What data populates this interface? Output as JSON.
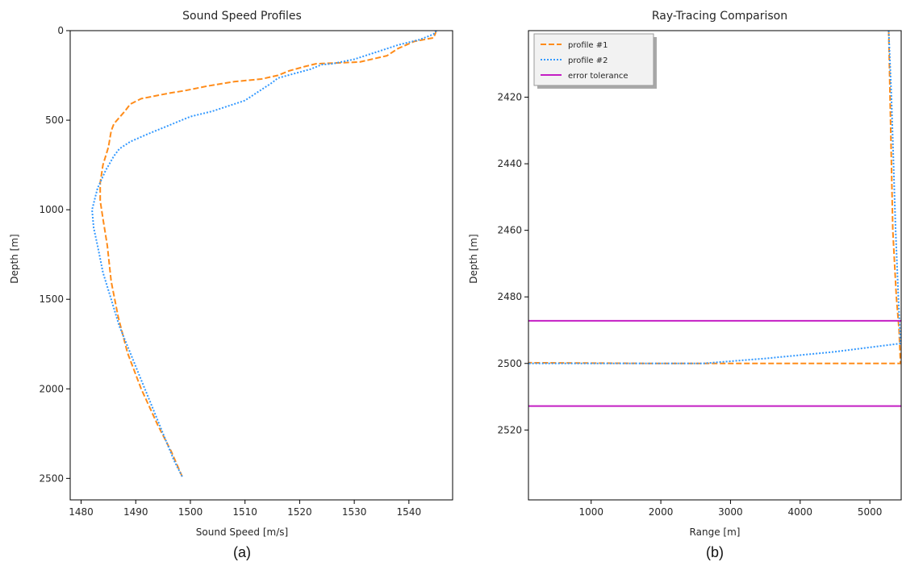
{
  "chart_data": [
    {
      "type": "line",
      "title": "Sound Speed Profiles",
      "xlabel": "Sound Speed [m/s]",
      "ylabel": "Depth [m]",
      "caption": "(a)",
      "xlim": [
        1478,
        1548
      ],
      "ylim": [
        2620,
        0
      ],
      "xticks": [
        1480,
        1490,
        1500,
        1510,
        1520,
        1530,
        1540
      ],
      "yticks": [
        0,
        500,
        1000,
        1500,
        2000,
        2500
      ],
      "grid": false,
      "colors": {
        "profile_1": "#ff8c1a",
        "profile_2": "#3399ff"
      },
      "series": [
        {
          "style": "dashed",
          "points": [
            [
              1545,
              0
            ],
            [
              1544.8,
              20
            ],
            [
              1544.5,
              40
            ],
            [
              1541,
              60
            ],
            [
              1538,
              100
            ],
            [
              1536,
              140
            ],
            [
              1531,
              175
            ],
            [
              1527,
              180
            ],
            [
              1523,
              185
            ],
            [
              1521,
              200
            ],
            [
              1518,
              225
            ],
            [
              1516,
              250
            ],
            [
              1513,
              270
            ],
            [
              1508,
              285
            ],
            [
              1505,
              300
            ],
            [
              1503,
              310
            ],
            [
              1499,
              335
            ],
            [
              1496,
              350
            ],
            [
              1491,
              380
            ],
            [
              1489,
              410
            ],
            [
              1488,
              450
            ],
            [
              1486,
              520
            ],
            [
              1485.5,
              560
            ],
            [
              1485,
              650
            ],
            [
              1484,
              750
            ],
            [
              1483.5,
              850
            ],
            [
              1483.5,
              950
            ],
            [
              1484,
              1050
            ],
            [
              1484.8,
              1200
            ],
            [
              1485.5,
              1400
            ],
            [
              1486.8,
              1600
            ],
            [
              1488.5,
              1800
            ],
            [
              1491,
              2000
            ],
            [
              1494,
              2200
            ],
            [
              1496.5,
              2350
            ],
            [
              1498.5,
              2490
            ]
          ]
        },
        {
          "style": "dotted",
          "points": [
            [
              1545,
              0
            ],
            [
              1544.5,
              20
            ],
            [
              1542,
              50
            ],
            [
              1538,
              80
            ],
            [
              1534,
              120
            ],
            [
              1530,
              160
            ],
            [
              1526,
              185
            ],
            [
              1524,
              190
            ],
            [
              1522,
              215
            ],
            [
              1519,
              240
            ],
            [
              1516,
              265
            ],
            [
              1515,
              290
            ],
            [
              1512,
              350
            ],
            [
              1510,
              390
            ],
            [
              1507,
              420
            ],
            [
              1504,
              450
            ],
            [
              1500,
              480
            ],
            [
              1496,
              530
            ],
            [
              1492,
              580
            ],
            [
              1489,
              620
            ],
            [
              1487,
              660
            ],
            [
              1486,
              700
            ],
            [
              1484.5,
              780
            ],
            [
              1483,
              880
            ],
            [
              1482,
              1000
            ],
            [
              1482.3,
              1100
            ],
            [
              1483,
              1200
            ],
            [
              1484,
              1350
            ],
            [
              1485.5,
              1500
            ],
            [
              1487,
              1650
            ],
            [
              1489,
              1800
            ],
            [
              1491,
              1950
            ],
            [
              1493,
              2100
            ],
            [
              1495,
              2250
            ],
            [
              1497,
              2400
            ],
            [
              1498.5,
              2490
            ]
          ]
        }
      ]
    },
    {
      "type": "line",
      "title": "Ray-Tracing Comparison",
      "xlabel": "Range [m]",
      "ylabel": "Depth [m]",
      "caption": "(b)",
      "xlim": [
        100,
        5450
      ],
      "ylim": [
        2541,
        2400
      ],
      "xticks": [
        1000,
        2000,
        3000,
        4000,
        5000
      ],
      "yticks": [
        2420,
        2440,
        2460,
        2480,
        2500,
        2520
      ],
      "grid": false,
      "legend": "top-left",
      "legend_entries": [
        "profile #1",
        "profile #2",
        "error tolerance"
      ],
      "colors": {
        "profile_1": "#ff8c1a",
        "profile_2": "#3399ff",
        "tolerance": "#c41ec4"
      },
      "series": [
        {
          "name": "profile #1",
          "style": "dashed",
          "points": [
            [
              5270,
              2400
            ],
            [
              5290,
              2420
            ],
            [
              5310,
              2440
            ],
            [
              5330,
              2460
            ],
            [
              5380,
              2480
            ],
            [
              5420,
              2490
            ],
            [
              5440,
              2500
            ],
            [
              4000,
              2500
            ],
            [
              2000,
              2500
            ],
            [
              100,
              2499.8
            ]
          ]
        },
        {
          "name": "profile #2",
          "style": "dotted",
          "points": [
            [
              5270,
              2400
            ],
            [
              5310,
              2420
            ],
            [
              5340,
              2440
            ],
            [
              5370,
              2460
            ],
            [
              5410,
              2480
            ],
            [
              5440,
              2494
            ],
            [
              4500,
              2496.5
            ],
            [
              3500,
              2498.5
            ],
            [
              2600,
              2500
            ],
            [
              2000,
              2500
            ],
            [
              100,
              2500
            ]
          ]
        },
        {
          "name": "error tolerance",
          "style": "solid",
          "hlines": [
            2487.2,
            2512.8
          ]
        }
      ]
    }
  ]
}
